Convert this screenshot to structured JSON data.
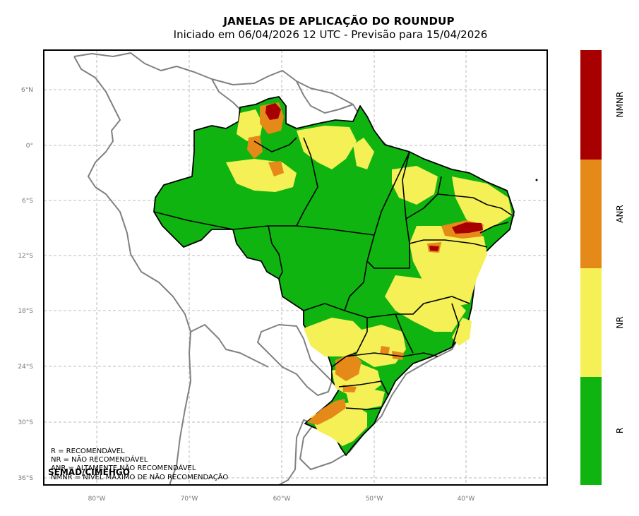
{
  "title": "JANELAS DE APLICAÇÃO DO ROUNDUP",
  "subtitle": "Iniciado em 06/04/2026 12 UTC - Previsão para 15/04/2026",
  "axes": {
    "lat_ticks": [
      "6°N",
      "0°",
      "6°S",
      "12°S",
      "18°S",
      "24°S",
      "30°S",
      "36°S"
    ],
    "lon_ticks": [
      "80°W",
      "70°W",
      "60°W",
      "50°W",
      "40°W"
    ]
  },
  "legend_lines": [
    "R = RECOMENDÁVEL",
    "NR = NÃO RECOMENDÁVEL",
    "ANR = ALTAMENTE NÃO RECOMENDÁVEL",
    "NMNR = NÍVEL MÁXIMO DE NÃO RECOMENDAÇÃO"
  ],
  "credit": "SEMAD/CIMEHGO",
  "colorbar": {
    "categories": [
      {
        "label": "NMNR",
        "color": "#a80000"
      },
      {
        "label": "ANR",
        "color": "#e58a19"
      },
      {
        "label": "NR",
        "color": "#f4f056"
      },
      {
        "label": "R",
        "color": "#10b410"
      }
    ]
  },
  "colors": {
    "R": "#10b410",
    "NR": "#f4f056",
    "ANR": "#e58a19",
    "NMNR": "#a80000",
    "coastline": "#808080",
    "grid": "#bbbbbb"
  }
}
